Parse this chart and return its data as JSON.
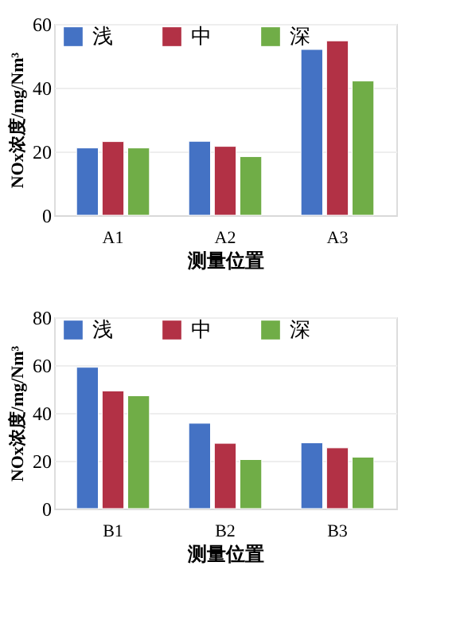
{
  "chart_data": [
    {
      "type": "bar",
      "categories": [
        "A1",
        "A2",
        "A3"
      ],
      "xlabel": "测量位置",
      "ylabel": "NOx浓度/mg/Nm³",
      "ylim": [
        0,
        60
      ],
      "yticks": [
        0,
        20,
        40,
        60
      ],
      "grid": "y",
      "legend": "top",
      "series": [
        {
          "name": "浅",
          "color": "#4472c4",
          "values": [
            21.1,
            23.2,
            52.0
          ]
        },
        {
          "name": "中",
          "color": "#b23145",
          "values": [
            23.1,
            21.6,
            54.7
          ]
        },
        {
          "name": "深",
          "color": "#70ad47",
          "values": [
            21.1,
            18.4,
            42.1
          ]
        }
      ]
    },
    {
      "type": "bar",
      "categories": [
        "B1",
        "B2",
        "B3"
      ],
      "xlabel": "测量位置",
      "ylabel": "NOx浓度/mg/Nm³",
      "ylim": [
        0,
        80
      ],
      "yticks": [
        0,
        20,
        40,
        60,
        80
      ],
      "grid": "y",
      "legend": "top",
      "series": [
        {
          "name": "浅",
          "color": "#4472c4",
          "values": [
            59.1,
            35.7,
            27.5
          ]
        },
        {
          "name": "中",
          "color": "#b23145",
          "values": [
            49.2,
            27.3,
            25.4
          ]
        },
        {
          "name": "深",
          "color": "#70ad47",
          "values": [
            47.2,
            20.5,
            21.5
          ]
        }
      ]
    }
  ]
}
